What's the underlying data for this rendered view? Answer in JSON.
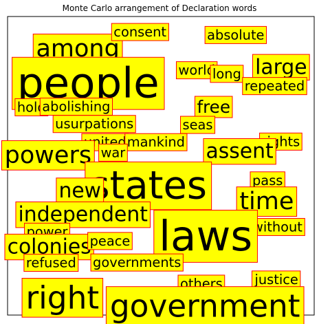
{
  "chart_data": {
    "type": "scatter",
    "title": "Monte Carlo arrangement of Declaration words",
    "xlim": [
      0,
      1
    ],
    "ylim": [
      0,
      1
    ],
    "grid": false,
    "axes_visible": false,
    "box_fill": "#ffff00",
    "box_edge": "#ff0000",
    "text_color": "#000000",
    "words": [
      {
        "text": "among",
        "x": 0.229,
        "y": 0.892,
        "weight": 5
      },
      {
        "text": "consent",
        "x": 0.432,
        "y": 0.948,
        "weight": 2
      },
      {
        "text": "absolute",
        "x": 0.744,
        "y": 0.938,
        "weight": 2
      },
      {
        "text": "people",
        "x": 0.263,
        "y": 0.776,
        "weight": 10
      },
      {
        "text": "world",
        "x": 0.617,
        "y": 0.82,
        "weight": 2
      },
      {
        "text": "long",
        "x": 0.715,
        "y": 0.808,
        "weight": 2
      },
      {
        "text": "large",
        "x": 0.892,
        "y": 0.83,
        "weight": 4
      },
      {
        "text": "repeated",
        "x": 0.871,
        "y": 0.767,
        "weight": 2
      },
      {
        "text": "hold",
        "x": 0.078,
        "y": 0.696,
        "weight": 2
      },
      {
        "text": "abolishing",
        "x": 0.224,
        "y": 0.698,
        "weight": 2
      },
      {
        "text": "free",
        "x": 0.672,
        "y": 0.697,
        "weight": 3
      },
      {
        "text": "usurpations",
        "x": 0.283,
        "y": 0.64,
        "weight": 2
      },
      {
        "text": "seas",
        "x": 0.62,
        "y": 0.637,
        "weight": 2
      },
      {
        "text": "rights",
        "x": 0.891,
        "y": 0.581,
        "weight": 2
      },
      {
        "text": "united",
        "x": 0.318,
        "y": 0.579,
        "weight": 2
      },
      {
        "text": "mankind",
        "x": 0.484,
        "y": 0.579,
        "weight": 2
      },
      {
        "text": "assent",
        "x": 0.757,
        "y": 0.548,
        "weight": 4
      },
      {
        "text": "powers",
        "x": 0.132,
        "y": 0.535,
        "weight": 5
      },
      {
        "text": "war",
        "x": 0.344,
        "y": 0.544,
        "weight": 2
      },
      {
        "text": "states",
        "x": 0.459,
        "y": 0.433,
        "weight": 9
      },
      {
        "text": "new",
        "x": 0.236,
        "y": 0.416,
        "weight": 4
      },
      {
        "text": "pass",
        "x": 0.848,
        "y": 0.451,
        "weight": 2
      },
      {
        "text": "time",
        "x": 0.845,
        "y": 0.38,
        "weight": 5
      },
      {
        "text": "independent",
        "x": 0.246,
        "y": 0.336,
        "weight": 4
      },
      {
        "text": "power",
        "x": 0.129,
        "y": 0.279,
        "weight": 2
      },
      {
        "text": "without",
        "x": 0.88,
        "y": 0.295,
        "weight": 2
      },
      {
        "text": "laws",
        "x": 0.646,
        "y": 0.264,
        "weight": 10
      },
      {
        "text": "colonies",
        "x": 0.136,
        "y": 0.228,
        "weight": 4
      },
      {
        "text": "peace",
        "x": 0.334,
        "y": 0.248,
        "weight": 2
      },
      {
        "text": "refused",
        "x": 0.142,
        "y": 0.175,
        "weight": 2
      },
      {
        "text": "governments",
        "x": 0.422,
        "y": 0.176,
        "weight": 2
      },
      {
        "text": "justice",
        "x": 0.877,
        "y": 0.119,
        "weight": 2
      },
      {
        "text": "others",
        "x": 0.632,
        "y": 0.105,
        "weight": 2
      },
      {
        "text": "right",
        "x": 0.179,
        "y": 0.058,
        "weight": 7
      },
      {
        "text": "government",
        "x": 0.644,
        "y": 0.03,
        "weight": 7
      }
    ]
  }
}
